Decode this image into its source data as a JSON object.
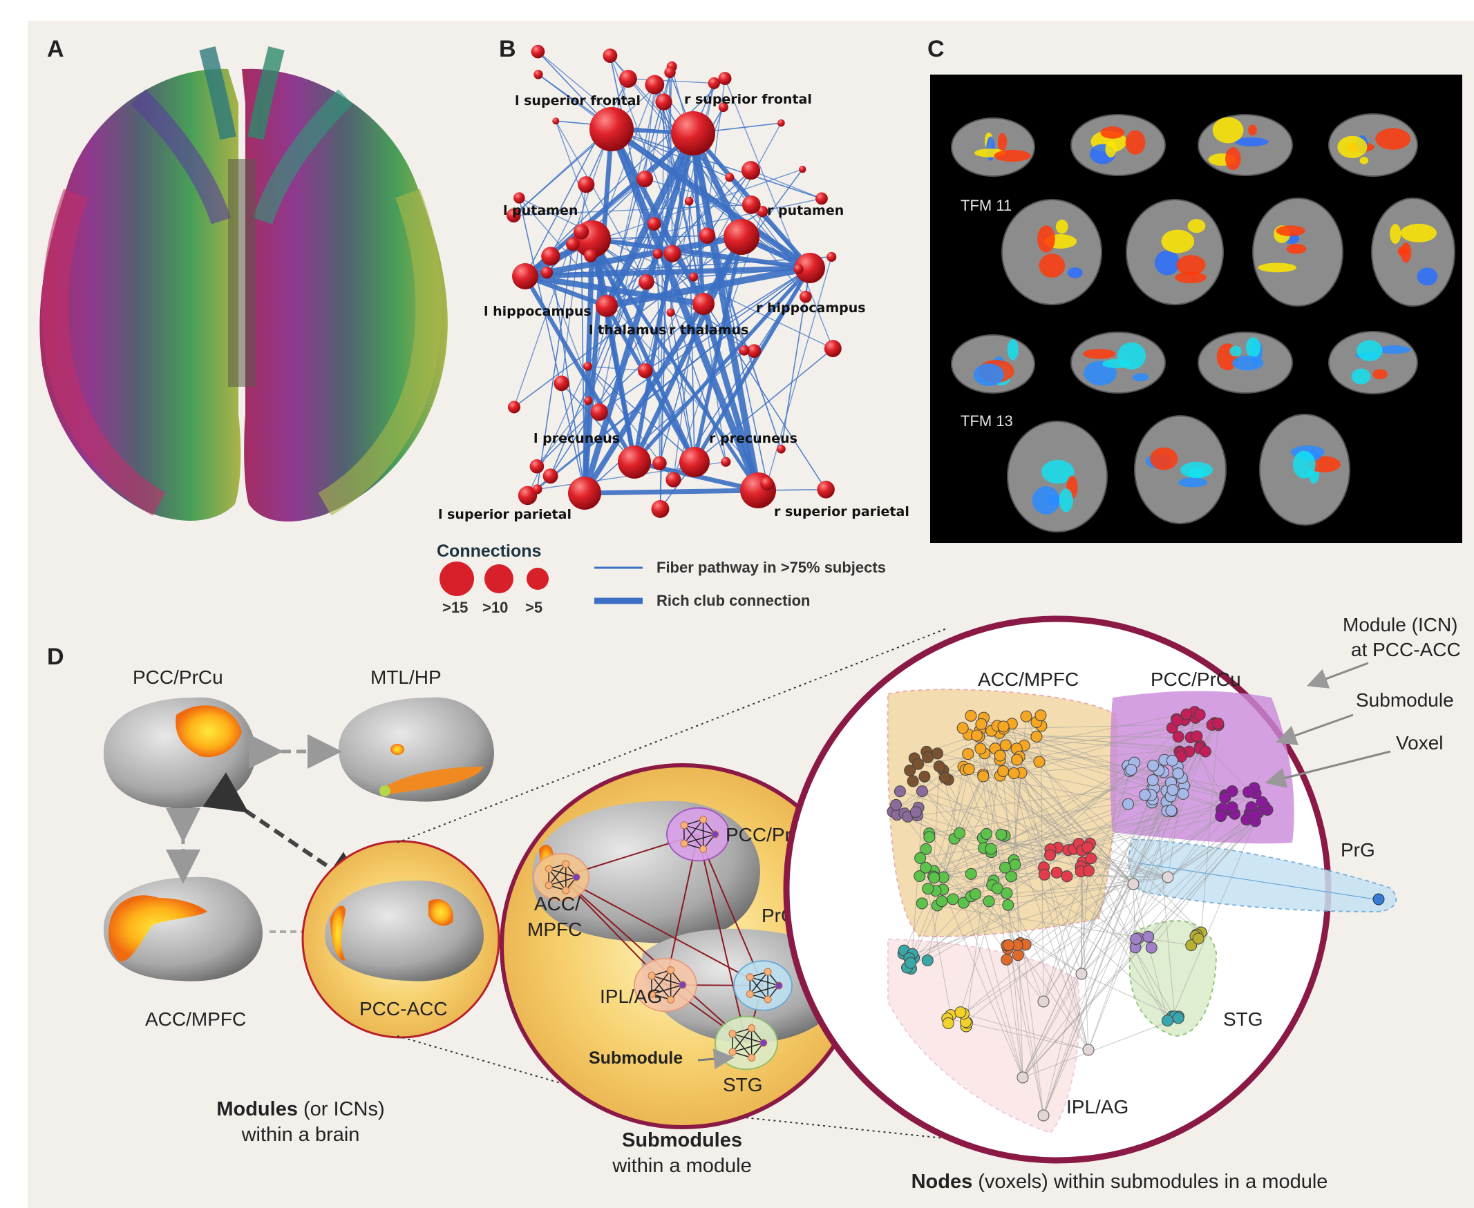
{
  "panels": {
    "a": {
      "letter": "A"
    },
    "b": {
      "letter": "B",
      "node_labels": {
        "l_superior_frontal": "l superior frontal",
        "r_superior_frontal": "r superior frontal",
        "l_putamen": "l putamen",
        "r_putamen": "r putamen",
        "l_hippocampus": "l hippocampus",
        "r_hippocampus": "r hippocampus",
        "l_thalamus": "l thalamus",
        "r_thalamus": "r thalamus",
        "l_precuneus": "l precuneus",
        "r_precuneus": "r precuneus",
        "l_superior_parietal": "l superior parietal",
        "r_superior_parietal": "r superior parietal"
      },
      "legend": {
        "connections_title": "Connections",
        "size_labels": [
          ">15",
          ">10",
          ">5"
        ],
        "fiber_label": "Fiber pathway in >75% subjects",
        "rich_club_label": "Rich club connection"
      },
      "colors": {
        "node": "#d8202a",
        "edge": "#3a6fc4"
      }
    },
    "c": {
      "letter": "C",
      "rows": [
        {
          "label": "TFM 11"
        },
        {
          "label": "TFM 13"
        }
      ]
    },
    "d": {
      "letter": "D",
      "modules": {
        "pcc_prcu": "PCC/PrCu",
        "mtl_hp": "MTL/HP",
        "acc_mpfc": "ACC/MPFC",
        "pcc_acc": "PCC-ACC"
      },
      "submodules": {
        "pcc_prcu": "PCC/PrCu",
        "acc": "ACC/",
        "mpfc": "MPFC",
        "prg": "PrG",
        "ipl_ag": "IPL/AG",
        "stg": "STG",
        "submodule_tag": "Submodule"
      },
      "nodes": {
        "acc_mpfc": "ACC/MPFC",
        "pcc_prcu": "PCC/PrCu",
        "prg": "PrG",
        "stg": "STG",
        "ipl_ag": "IPL/AG"
      },
      "annotations": {
        "module_icn_line1": "Module (ICN)",
        "module_icn_line2": "at PCC-ACC",
        "submodule": "Submodule",
        "voxel": "Voxel"
      },
      "captions": {
        "modules_bold": "Modules",
        "modules_rest": " (or ICNs)",
        "modules_line2": "within a brain",
        "submodules_bold": "Submodules",
        "submodules_line2": "within a module",
        "nodes_bold": "Nodes",
        "nodes_rest": " (voxels) within submodules in a module"
      }
    }
  }
}
